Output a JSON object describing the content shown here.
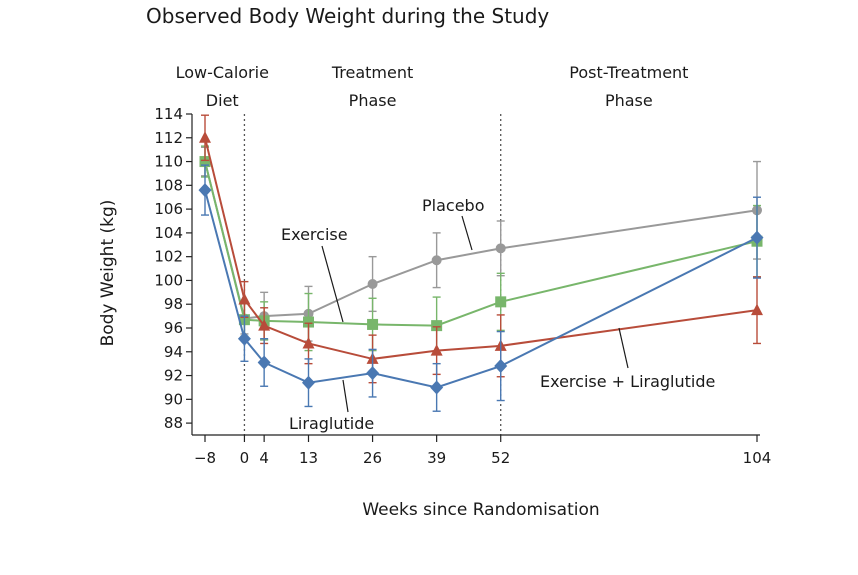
{
  "chart_data": {
    "type": "line",
    "title": "Observed Body Weight during the Study",
    "xlabel": "Weeks since Randomisation",
    "ylabel": "Body Weight (kg)",
    "x_ticks": [
      -8,
      0,
      4,
      13,
      26,
      39,
      52,
      104
    ],
    "y_ticks": [
      88,
      90,
      92,
      94,
      96,
      98,
      100,
      102,
      104,
      106,
      108,
      110,
      112,
      114
    ],
    "xlim": [
      -10,
      104
    ],
    "ylim": [
      87,
      114
    ],
    "phase_boundaries": [
      0,
      52
    ],
    "phases": [
      {
        "line1": "Low-Calorie",
        "line2": "Diet",
        "center_x": -4.5
      },
      {
        "line1": "Treatment",
        "line2": "Phase",
        "center_x": 26
      },
      {
        "line1": "Post-Treatment",
        "line2": "Phase",
        "center_x": 78
      }
    ],
    "series": [
      {
        "name": "Placebo",
        "color": "#999999",
        "marker": "circle",
        "x": [
          -8,
          0,
          4,
          13,
          26,
          39,
          52,
          104
        ],
        "y": [
          110.0,
          96.8,
          97.0,
          97.2,
          99.7,
          101.7,
          102.7,
          105.9
        ],
        "err": [
          1.2,
          1.3,
          2.0,
          2.3,
          2.3,
          2.3,
          2.3,
          4.1
        ]
      },
      {
        "name": "Exercise",
        "color": "#78b66b",
        "marker": "square",
        "x": [
          -8,
          0,
          4,
          13,
          26,
          39,
          52,
          104
        ],
        "y": [
          110.0,
          96.7,
          96.6,
          96.5,
          96.3,
          96.2,
          98.2,
          103.3
        ],
        "err": [
          1.3,
          1.4,
          1.6,
          2.4,
          2.2,
          2.4,
          2.4,
          3.0
        ]
      },
      {
        "name": "Exercise + Liraglutide",
        "color": "#b84c3a",
        "marker": "triangle",
        "x": [
          -8,
          0,
          4,
          13,
          26,
          39,
          52,
          104
        ],
        "y": [
          112.0,
          98.4,
          96.2,
          94.7,
          93.4,
          94.1,
          94.5,
          97.5
        ],
        "err": [
          1.9,
          1.5,
          1.5,
          1.7,
          2.0,
          2.0,
          2.6,
          2.8
        ]
      },
      {
        "name": "Liraglutide",
        "color": "#4a78b2",
        "marker": "diamond",
        "x": [
          -8,
          0,
          4,
          13,
          26,
          39,
          52,
          104
        ],
        "y": [
          107.6,
          95.1,
          93.1,
          91.4,
          92.2,
          91.0,
          92.8,
          103.6
        ],
        "err": [
          2.1,
          1.9,
          2.0,
          2.0,
          2.0,
          2.0,
          2.9,
          3.4
        ]
      }
    ],
    "series_labels": [
      {
        "series": "Placebo",
        "text": "Placebo"
      },
      {
        "series": "Exercise",
        "text": "Exercise"
      },
      {
        "series": "Liraglutide",
        "text": "Liraglutide"
      },
      {
        "series": "Exercise + Liraglutide",
        "text": "Exercise + Liraglutide"
      }
    ],
    "grid": false,
    "legend": "none"
  }
}
